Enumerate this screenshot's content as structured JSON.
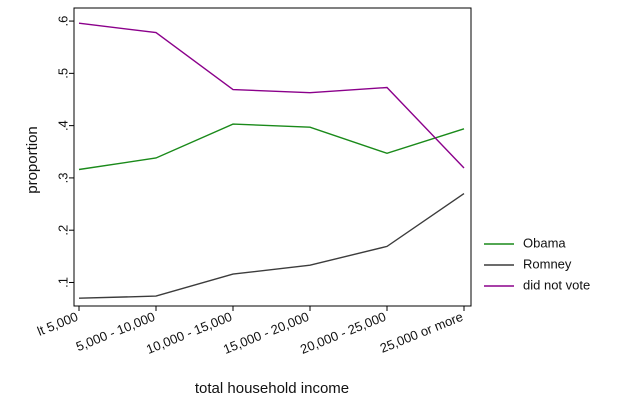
{
  "chart_data": {
    "type": "line",
    "title": "",
    "xlabel": "total household income",
    "ylabel": "proportion",
    "categories": [
      "lt 5,000",
      "5,000 - 10,000",
      "10,000 - 15,000",
      "15,000 - 20,000",
      "20,000 - 25,000",
      "25,000 or more"
    ],
    "yticks": [
      0.1,
      0.2,
      0.3,
      0.4,
      0.5,
      0.6
    ],
    "ytick_labels": [
      ".1",
      ".2",
      ".3",
      ".4",
      ".5",
      ".6"
    ],
    "ylim": [
      0.055,
      0.625
    ],
    "grid": false,
    "legend_position": "right",
    "series": [
      {
        "name": "Obama",
        "color": "#1a8a1a",
        "values": [
          0.316,
          0.338,
          0.403,
          0.397,
          0.347,
          0.394
        ]
      },
      {
        "name": "Romney",
        "color": "#3c3c3c",
        "values": [
          0.07,
          0.074,
          0.116,
          0.133,
          0.169,
          0.27
        ]
      },
      {
        "name": "did not vote",
        "color": "#8b008b",
        "values": [
          0.596,
          0.578,
          0.469,
          0.463,
          0.473,
          0.319
        ]
      }
    ]
  }
}
